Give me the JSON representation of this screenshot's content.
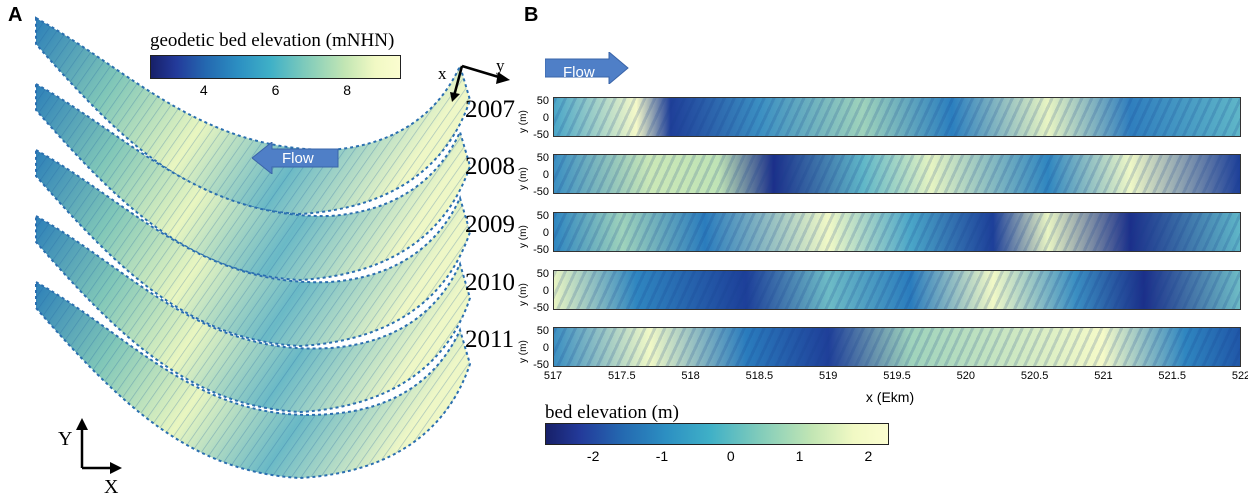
{
  "panel_a": {
    "label": "A",
    "colorbar": {
      "title": "geodetic bed elevation (mNHN)",
      "ticks": [
        "4",
        "6",
        "8"
      ],
      "min": 2.5,
      "max": 9.5,
      "tick_values": [
        4,
        6,
        8
      ]
    },
    "flow_label": "Flow",
    "local_axes": {
      "x": "x",
      "y": "y"
    },
    "global_axes": {
      "x": "X",
      "y": "Y"
    }
  },
  "panel_b": {
    "label": "B",
    "flow_label": "Flow",
    "years": [
      "2007",
      "2008",
      "2009",
      "2010",
      "2011"
    ],
    "y_axis_label": "y (m)",
    "y_ticks": [
      "50",
      "0",
      "-50"
    ],
    "x_ticks": [
      "517",
      "517.5",
      "518",
      "518.5",
      "519",
      "519.5",
      "520",
      "520.5",
      "521",
      "521.5",
      "522"
    ],
    "x_axis_label": "x (Ekm)",
    "x_range": [
      517,
      522
    ],
    "y_range": [
      -50,
      50
    ],
    "colorbar": {
      "title": "bed elevation (m)",
      "ticks": [
        "-2",
        "-1",
        "0",
        "1",
        "2"
      ],
      "min": -2.7,
      "max": 2.3,
      "tick_values": [
        -2,
        -1,
        0,
        1,
        2
      ]
    }
  },
  "colors": {
    "dark": "#1a237e",
    "mid": "#2f86c0",
    "light": "#f8f8c6",
    "arrow": "#4f7fc7"
  }
}
